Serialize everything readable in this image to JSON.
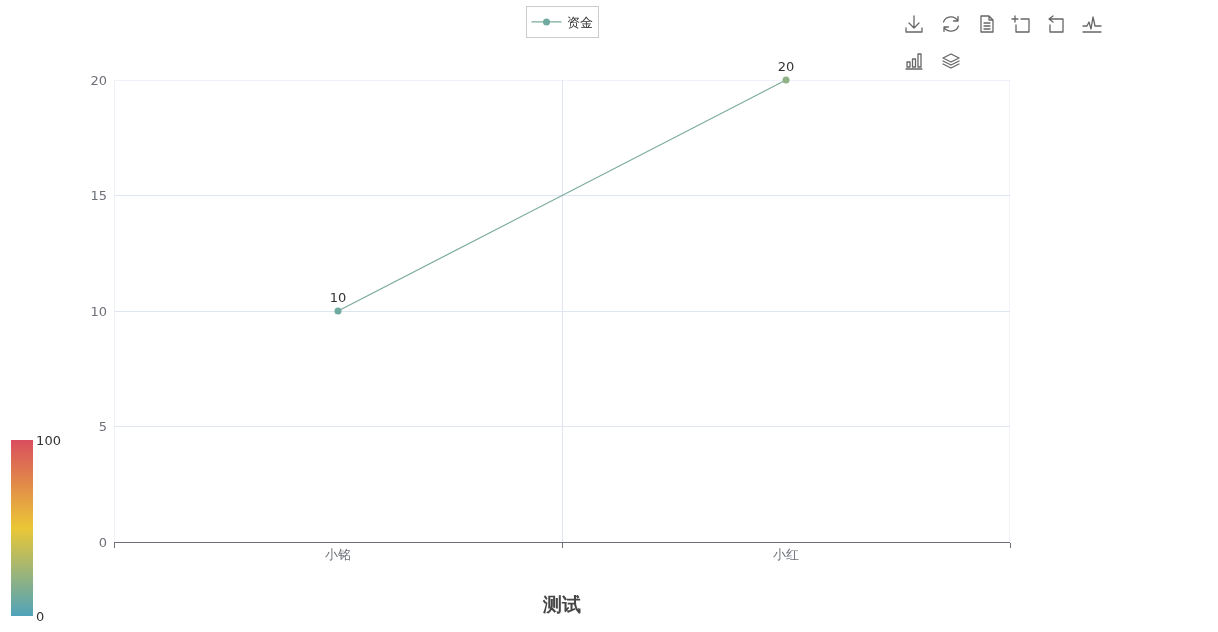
{
  "chart_data": {
    "type": "line",
    "title": "测试",
    "categories": [
      "小铭",
      "小红"
    ],
    "series": [
      {
        "name": "资金",
        "color": "#7aab9b",
        "values": [
          10,
          20
        ]
      }
    ],
    "ylim": [
      0,
      20
    ],
    "yticks": [
      0,
      5,
      10,
      15,
      20
    ],
    "clim": [
      0,
      100
    ],
    "cticks": [
      0,
      100
    ],
    "grid": true,
    "legend": "top",
    "marker": "circle",
    "line_style": "solid",
    "data_labels": true
  }
}
